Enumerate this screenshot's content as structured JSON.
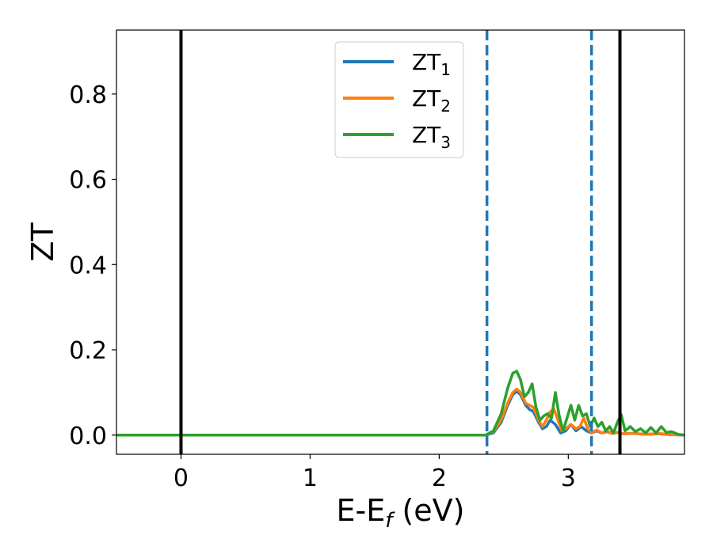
{
  "chart_data": {
    "type": "line",
    "xlabel": "E-E",
    "xlabel_sub": "f",
    "xlabel_unit": " (eV)",
    "ylabel": "ZT",
    "xlim": [
      -0.5,
      3.9
    ],
    "ylim": [
      -0.045,
      0.95
    ],
    "xticks": [
      0,
      1,
      2,
      3
    ],
    "xtick_labels": [
      "0",
      "1",
      "2",
      "3"
    ],
    "yticks": [
      0.0,
      0.2,
      0.4,
      0.6,
      0.8
    ],
    "ytick_labels": [
      "0.0",
      "0.2",
      "0.4",
      "0.6",
      "0.8"
    ],
    "grid": false,
    "legend_position": "top-center",
    "vlines": [
      {
        "x": 0.0,
        "style": "solid",
        "color": "#000000"
      },
      {
        "x": 3.4,
        "style": "solid",
        "color": "#000000"
      },
      {
        "x": 2.37,
        "style": "dashed",
        "color": "#1f77b4"
      },
      {
        "x": 3.18,
        "style": "dashed",
        "color": "#1f77b4"
      }
    ],
    "series": [
      {
        "name": "ZT",
        "name_sub": "1",
        "color": "#1f77b4",
        "points": [
          [
            -0.5,
            0
          ],
          [
            2.36,
            0
          ],
          [
            2.42,
            0.005
          ],
          [
            2.48,
            0.03
          ],
          [
            2.53,
            0.07
          ],
          [
            2.57,
            0.095
          ],
          [
            2.6,
            0.103
          ],
          [
            2.63,
            0.095
          ],
          [
            2.67,
            0.07
          ],
          [
            2.7,
            0.06
          ],
          [
            2.73,
            0.055
          ],
          [
            2.77,
            0.03
          ],
          [
            2.8,
            0.015
          ],
          [
            2.83,
            0.02
          ],
          [
            2.86,
            0.035
          ],
          [
            2.9,
            0.025
          ],
          [
            2.94,
            0.005
          ],
          [
            2.98,
            0.01
          ],
          [
            3.02,
            0.025
          ],
          [
            3.06,
            0.01
          ],
          [
            3.1,
            0.02
          ],
          [
            3.14,
            0.01
          ],
          [
            3.18,
            0.005
          ],
          [
            3.22,
            0.01
          ],
          [
            3.26,
            0.005
          ],
          [
            3.3,
            0.008
          ],
          [
            3.34,
            0.004
          ],
          [
            3.38,
            0.006
          ],
          [
            3.42,
            0.003
          ],
          [
            3.5,
            0.004
          ],
          [
            3.6,
            0.002
          ],
          [
            3.7,
            0.003
          ],
          [
            3.8,
            0.001
          ],
          [
            3.9,
            0
          ]
        ]
      },
      {
        "name": "ZT",
        "name_sub": "2",
        "color": "#ff7f0e",
        "points": [
          [
            -0.5,
            0
          ],
          [
            2.36,
            0
          ],
          [
            2.42,
            0.008
          ],
          [
            2.48,
            0.035
          ],
          [
            2.53,
            0.075
          ],
          [
            2.57,
            0.1
          ],
          [
            2.6,
            0.108
          ],
          [
            2.63,
            0.1
          ],
          [
            2.67,
            0.075
          ],
          [
            2.7,
            0.07
          ],
          [
            2.73,
            0.065
          ],
          [
            2.77,
            0.035
          ],
          [
            2.8,
            0.02
          ],
          [
            2.83,
            0.035
          ],
          [
            2.86,
            0.055
          ],
          [
            2.89,
            0.06
          ],
          [
            2.92,
            0.035
          ],
          [
            2.95,
            0.01
          ],
          [
            2.98,
            0.015
          ],
          [
            3.02,
            0.025
          ],
          [
            3.06,
            0.015
          ],
          [
            3.09,
            0.02
          ],
          [
            3.12,
            0.04
          ],
          [
            3.15,
            0.015
          ],
          [
            3.18,
            0.005
          ],
          [
            3.22,
            0.012
          ],
          [
            3.26,
            0.005
          ],
          [
            3.3,
            0.01
          ],
          [
            3.34,
            0.004
          ],
          [
            3.38,
            0.006
          ],
          [
            3.42,
            0.003
          ],
          [
            3.5,
            0.004
          ],
          [
            3.6,
            0.002
          ],
          [
            3.7,
            0.004
          ],
          [
            3.8,
            0.001
          ],
          [
            3.9,
            0
          ]
        ]
      },
      {
        "name": "ZT",
        "name_sub": "3",
        "color": "#2ca02c",
        "points": [
          [
            -0.5,
            0
          ],
          [
            2.36,
            0
          ],
          [
            2.42,
            0.01
          ],
          [
            2.48,
            0.05
          ],
          [
            2.53,
            0.11
          ],
          [
            2.57,
            0.145
          ],
          [
            2.6,
            0.15
          ],
          [
            2.63,
            0.13
          ],
          [
            2.66,
            0.09
          ],
          [
            2.69,
            0.1
          ],
          [
            2.72,
            0.12
          ],
          [
            2.75,
            0.065
          ],
          [
            2.78,
            0.035
          ],
          [
            2.81,
            0.045
          ],
          [
            2.84,
            0.05
          ],
          [
            2.87,
            0.04
          ],
          [
            2.9,
            0.1
          ],
          [
            2.93,
            0.045
          ],
          [
            2.96,
            0.01
          ],
          [
            2.99,
            0.04
          ],
          [
            3.02,
            0.07
          ],
          [
            3.05,
            0.035
          ],
          [
            3.08,
            0.07
          ],
          [
            3.11,
            0.045
          ],
          [
            3.14,
            0.05
          ],
          [
            3.17,
            0.02
          ],
          [
            3.2,
            0.04
          ],
          [
            3.23,
            0.02
          ],
          [
            3.26,
            0.03
          ],
          [
            3.29,
            0.01
          ],
          [
            3.32,
            0.02
          ],
          [
            3.35,
            0.005
          ],
          [
            3.38,
            0.03
          ],
          [
            3.41,
            0.048
          ],
          [
            3.44,
            0.01
          ],
          [
            3.48,
            0.02
          ],
          [
            3.52,
            0.008
          ],
          [
            3.56,
            0.015
          ],
          [
            3.6,
            0.005
          ],
          [
            3.64,
            0.018
          ],
          [
            3.68,
            0.005
          ],
          [
            3.72,
            0.02
          ],
          [
            3.76,
            0.006
          ],
          [
            3.8,
            0.008
          ],
          [
            3.85,
            0.002
          ],
          [
            3.9,
            0
          ]
        ]
      }
    ]
  }
}
